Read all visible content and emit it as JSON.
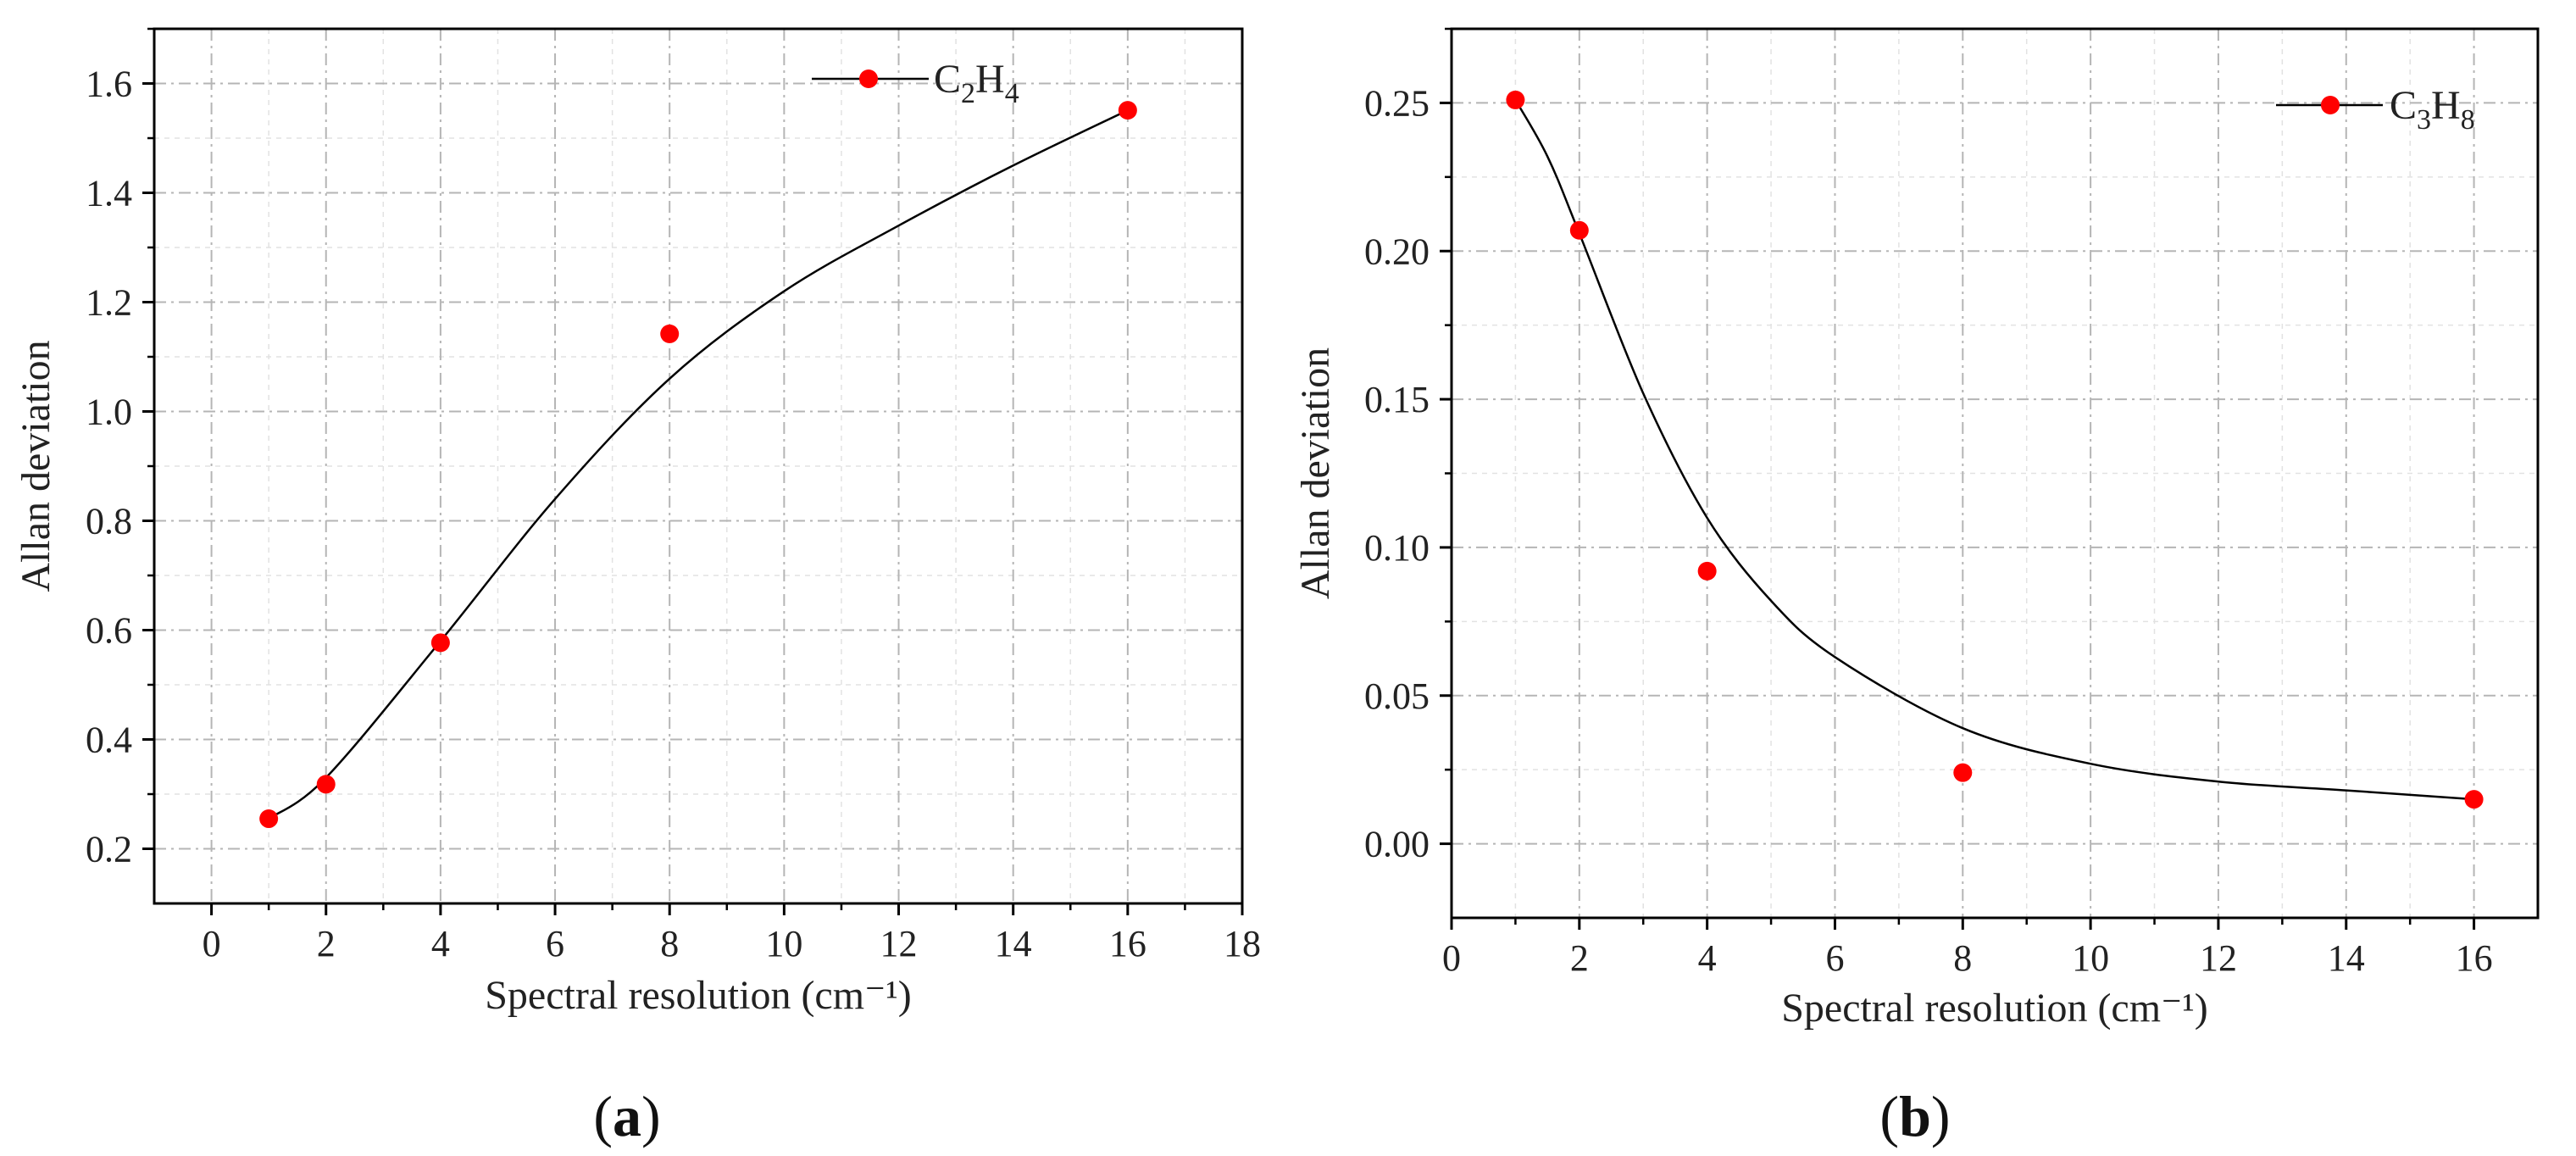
{
  "colors": {
    "marker": "#ff0000",
    "curve": "#000000",
    "frame": "#000000",
    "grid_major": "#b5b5b5",
    "grid_minor": "#e2e2e2"
  },
  "chart_data": [
    {
      "type": "scatter",
      "panel_label": "(a)",
      "panel_letter": "a",
      "title": "",
      "xlabel": "Spectral resolution (cm⁻¹)",
      "ylabel": "Allan deviation",
      "xlim": [
        -1,
        18
      ],
      "ylim": [
        0.1,
        1.7
      ],
      "xticks": [
        0,
        2,
        4,
        6,
        8,
        10,
        12,
        14,
        16,
        18
      ],
      "yticks": [
        0.2,
        0.4,
        0.6,
        0.8,
        1.0,
        1.2,
        1.4,
        1.6
      ],
      "xtick_labels": [
        "0",
        "2",
        "4",
        "6",
        "8",
        "10",
        "12",
        "14",
        "16",
        "18"
      ],
      "ytick_labels": [
        "0.2",
        "0.4",
        "0.6",
        "0.8",
        "1.0",
        "1.2",
        "1.4",
        "1.6"
      ],
      "grid": true,
      "legend_position": "top-right",
      "series": [
        {
          "name": "C2H4",
          "legend_main": [
            "C",
            "H"
          ],
          "legend_sub": [
            "2",
            "4"
          ],
          "x": [
            1,
            2,
            4,
            8,
            16
          ],
          "y": [
            0.255,
            0.318,
            0.577,
            1.142,
            1.551
          ],
          "fit_curve": {
            "x": [
              1,
              2,
              4,
              6,
              8,
              10,
              12,
              14,
              16
            ],
            "y": [
              0.255,
              0.33,
              0.58,
              0.84,
              1.06,
              1.22,
              1.34,
              1.45,
              1.551
            ]
          }
        }
      ]
    },
    {
      "type": "scatter",
      "panel_label": "(b)",
      "panel_letter": "b",
      "title": "",
      "xlabel": "Spectral resolution (cm⁻¹)",
      "ylabel": "Allan deviation",
      "xlim": [
        0,
        17
      ],
      "ylim": [
        -0.025,
        0.275
      ],
      "xticks": [
        0,
        2,
        4,
        6,
        8,
        10,
        12,
        14,
        16
      ],
      "yticks": [
        0.0,
        0.05,
        0.1,
        0.15,
        0.2,
        0.25
      ],
      "xtick_labels": [
        "0",
        "2",
        "4",
        "6",
        "8",
        "10",
        "12",
        "14",
        "16"
      ],
      "ytick_labels": [
        "0.00",
        "0.05",
        "0.10",
        "0.15",
        "0.20",
        "0.25"
      ],
      "grid": true,
      "legend_position": "top-right",
      "series": [
        {
          "name": "C3H8",
          "legend_main": [
            "C",
            "H"
          ],
          "legend_sub": [
            "3",
            "8"
          ],
          "x": [
            1,
            2,
            4,
            8,
            16
          ],
          "y": [
            0.251,
            0.207,
            0.092,
            0.024,
            0.015
          ],
          "fit_curve": {
            "x": [
              1,
              1.5,
              2,
              3,
              4,
              5,
              6,
              8,
              10,
              12,
              14,
              16
            ],
            "y": [
              0.251,
              0.232,
              0.206,
              0.152,
              0.11,
              0.082,
              0.063,
              0.039,
              0.027,
              0.021,
              0.018,
              0.015
            ]
          }
        }
      ]
    }
  ]
}
